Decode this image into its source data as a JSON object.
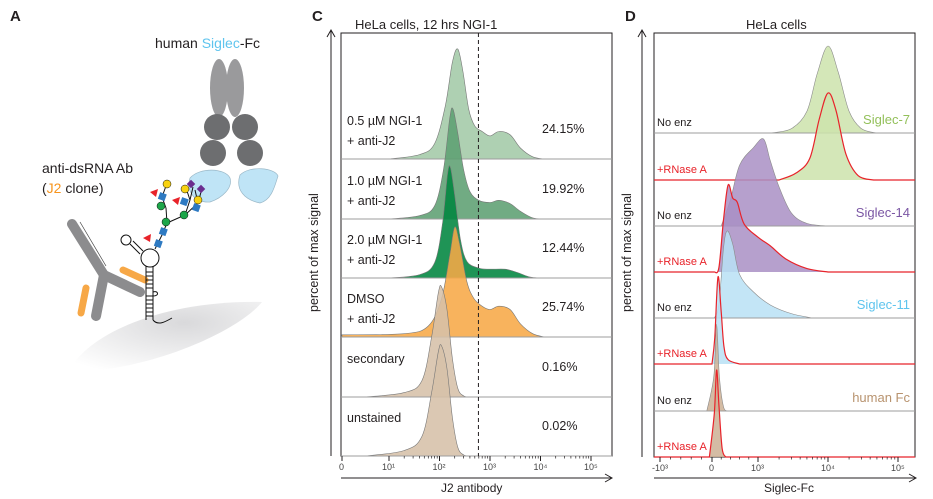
{
  "panels": {
    "a": {
      "letter": "A",
      "siglec_label": {
        "pre": "human ",
        "highlight": "Siglec",
        "post": "-Fc"
      },
      "antibody_label": {
        "line1": "anti-dsRNA Ab",
        "open": "(",
        "highlight": "J2",
        "close": " clone)"
      },
      "colors": {
        "siglec": "#5ec4ee",
        "j2": "#f7941d"
      }
    },
    "c": {
      "letter": "C"
    },
    "d": {
      "letter": "D"
    }
  },
  "chart_data": [
    {
      "type": "area",
      "title": "HeLa cells, 12 hrs NGI-1",
      "xlabel": "J2 antibody",
      "ylabel": "percent of max signal",
      "xscale": "biexponential",
      "xticks": [
        "0",
        "10¹",
        "10²",
        "10³",
        "10⁴",
        "10⁵"
      ],
      "xtick_values": [
        0,
        10,
        100,
        1000,
        10000,
        100000
      ],
      "gate_threshold": 590,
      "ylim": [
        0,
        100
      ],
      "series": [
        {
          "name": "0.5 µM NGI-1",
          "name2": "+ anti-J2",
          "percent": "24.15%",
          "color": "#a3c9a7",
          "points": [
            [
              10,
              0
            ],
            [
              40,
              4
            ],
            [
              80,
              14
            ],
            [
              130,
              48
            ],
            [
              180,
              88
            ],
            [
              230,
              100
            ],
            [
              290,
              80
            ],
            [
              380,
              45
            ],
            [
              500,
              30
            ],
            [
              700,
              25
            ],
            [
              1000,
              21
            ],
            [
              1500,
              25
            ],
            [
              2500,
              22
            ],
            [
              4000,
              10
            ],
            [
              7000,
              2
            ],
            [
              12000,
              0
            ]
          ]
        },
        {
          "name": "1.0 µM NGI-1",
          "name2": "+ anti-J2",
          "percent": "19.92%",
          "color": "#5d9f72",
          "points": [
            [
              10,
              0
            ],
            [
              40,
              3
            ],
            [
              80,
              12
            ],
            [
              120,
              45
            ],
            [
              160,
              92
            ],
            [
              185,
              100
            ],
            [
              230,
              78
            ],
            [
              300,
              45
            ],
            [
              400,
              25
            ],
            [
              600,
              17
            ],
            [
              1000,
              15
            ],
            [
              1500,
              17
            ],
            [
              2500,
              14
            ],
            [
              4000,
              7
            ],
            [
              7000,
              1
            ],
            [
              12000,
              0
            ]
          ]
        },
        {
          "name": "2.0 µM NGI-1",
          "name2": "+ anti-J2",
          "percent": "12.44%",
          "color": "#00853f",
          "points": [
            [
              10,
              0
            ],
            [
              40,
              3
            ],
            [
              80,
              14
            ],
            [
              115,
              50
            ],
            [
              145,
              95
            ],
            [
              165,
              100
            ],
            [
              200,
              75
            ],
            [
              260,
              35
            ],
            [
              350,
              15
            ],
            [
              600,
              9
            ],
            [
              1000,
              8
            ],
            [
              2000,
              8
            ],
            [
              3500,
              5
            ],
            [
              6000,
              1
            ],
            [
              10000,
              0
            ]
          ]
        },
        {
          "name": "DMSO",
          "name2": "+ anti-J2",
          "percent": "25.74%",
          "color": "#f7a847",
          "points": [
            [
              0,
              2
            ],
            [
              20,
              3
            ],
            [
              60,
              10
            ],
            [
              110,
              35
            ],
            [
              160,
              75
            ],
            [
              200,
              100
            ],
            [
              250,
              85
            ],
            [
              350,
              50
            ],
            [
              480,
              35
            ],
            [
              700,
              28
            ],
            [
              1000,
              25
            ],
            [
              1500,
              28
            ],
            [
              2500,
              25
            ],
            [
              4000,
              12
            ],
            [
              7000,
              3
            ],
            [
              12000,
              0
            ]
          ]
        },
        {
          "name": "secondary",
          "name2": "",
          "percent": "0.16%",
          "color": "#d6c0a8",
          "points": [
            [
              5,
              0
            ],
            [
              20,
              4
            ],
            [
              45,
              15
            ],
            [
              70,
              55
            ],
            [
              95,
              95
            ],
            [
              110,
              100
            ],
            [
              140,
              80
            ],
            [
              180,
              35
            ],
            [
              230,
              8
            ],
            [
              300,
              1
            ],
            [
              400,
              0
            ]
          ]
        },
        {
          "name": "unstained",
          "name2": "",
          "percent": "0.02%",
          "color": "#d6c0a8",
          "points": [
            [
              5,
              0
            ],
            [
              20,
              5
            ],
            [
              45,
              18
            ],
            [
              70,
              58
            ],
            [
              95,
              95
            ],
            [
              110,
              100
            ],
            [
              140,
              80
            ],
            [
              180,
              35
            ],
            [
              230,
              8
            ],
            [
              300,
              1
            ],
            [
              400,
              0
            ]
          ]
        }
      ]
    },
    {
      "type": "area",
      "title": "HeLa cells",
      "xlabel": "Siglec-Fc",
      "ylabel": "percent of max signal",
      "xscale": "biexponential",
      "xticks": [
        "-10³",
        "0",
        "10³",
        "10⁴",
        "10⁵"
      ],
      "xtick_values": [
        -1000,
        0,
        1000,
        10000,
        100000
      ],
      "ylim": [
        0,
        100
      ],
      "groups": [
        {
          "name": "Siglec-7",
          "color": "#93c05a",
          "fill": "#cde3ab"
        },
        {
          "name": "Siglec-14",
          "color": "#7b57a4",
          "fill": "#a98fc4"
        },
        {
          "name": "Siglec-11",
          "color": "#5ec4ee",
          "fill": "#b9e0f5"
        },
        {
          "name": "human Fc",
          "color": "#b8936f",
          "fill": "#cdb094"
        }
      ],
      "rnase_color": "#e8232a",
      "series": [
        {
          "group": 0,
          "name": "No enz",
          "points": [
            [
              1500,
              0
            ],
            [
              3000,
              5
            ],
            [
              5000,
              25
            ],
            [
              7000,
              68
            ],
            [
              10000,
              100
            ],
            [
              14000,
              70
            ],
            [
              20000,
              25
            ],
            [
              30000,
              5
            ],
            [
              50000,
              0
            ]
          ]
        },
        {
          "group": 0,
          "name": "+RNase A",
          "points": [
            [
              2000,
              0
            ],
            [
              3500,
              8
            ],
            [
              5500,
              25
            ],
            [
              7500,
              70
            ],
            [
              10000,
              100
            ],
            [
              13000,
              80
            ],
            [
              18000,
              30
            ],
            [
              27000,
              5
            ],
            [
              45000,
              0
            ]
          ]
        },
        {
          "group": 1,
          "name": "No enz",
          "points": [
            [
              200,
              0
            ],
            [
              400,
              30
            ],
            [
              600,
              70
            ],
            [
              900,
              90
            ],
            [
              1200,
              100
            ],
            [
              1500,
              75
            ],
            [
              2000,
              45
            ],
            [
              3000,
              15
            ],
            [
              5000,
              3
            ],
            [
              10000,
              0
            ]
          ]
        },
        {
          "group": 1,
          "name": "+RNase A",
          "points": [
            [
              50,
              0
            ],
            [
              150,
              5
            ],
            [
              250,
              60
            ],
            [
              350,
              100
            ],
            [
              450,
              85
            ],
            [
              550,
              80
            ],
            [
              700,
              55
            ],
            [
              1000,
              40
            ],
            [
              1500,
              30
            ],
            [
              2500,
              15
            ],
            [
              5000,
              4
            ],
            [
              10000,
              0
            ]
          ]
        },
        {
          "group": 2,
          "name": "No enz",
          "points": [
            [
              50,
              0
            ],
            [
              150,
              15
            ],
            [
              250,
              80
            ],
            [
              330,
              100
            ],
            [
              450,
              85
            ],
            [
              600,
              50
            ],
            [
              900,
              30
            ],
            [
              1500,
              15
            ],
            [
              3000,
              5
            ],
            [
              6000,
              0
            ]
          ]
        },
        {
          "group": 2,
          "name": "+RNase A",
          "points": [
            [
              0,
              0
            ],
            [
              60,
              30
            ],
            [
              130,
              100
            ],
            [
              200,
              60
            ],
            [
              260,
              20
            ],
            [
              350,
              5
            ],
            [
              600,
              0
            ]
          ]
        },
        {
          "group": 3,
          "name": "No enz",
          "points": [
            [
              -100,
              0
            ],
            [
              40,
              40
            ],
            [
              100,
              100
            ],
            [
              160,
              40
            ],
            [
              250,
              5
            ],
            [
              350,
              0
            ]
          ]
        },
        {
          "group": 3,
          "name": "+RNase A",
          "points": [
            [
              -50,
              0
            ],
            [
              50,
              50
            ],
            [
              100,
              100
            ],
            [
              150,
              60
            ],
            [
              220,
              10
            ],
            [
              300,
              0
            ]
          ]
        }
      ]
    }
  ]
}
